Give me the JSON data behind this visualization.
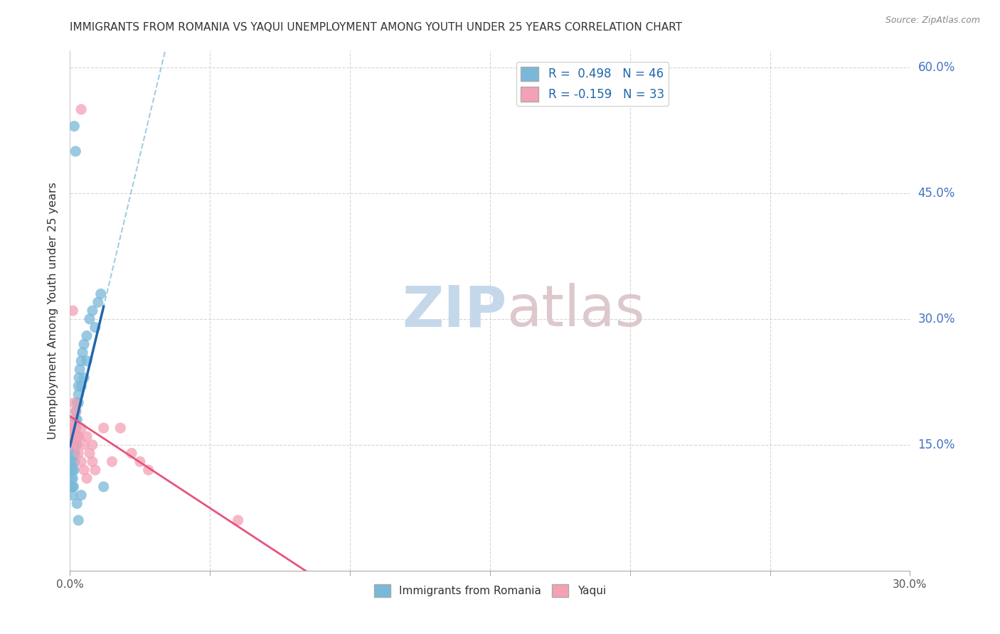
{
  "title": "IMMIGRANTS FROM ROMANIA VS YAQUI UNEMPLOYMENT AMONG YOUTH UNDER 25 YEARS CORRELATION CHART",
  "source": "Source: ZipAtlas.com",
  "ylabel": "Unemployment Among Youth under 25 years",
  "xlim": [
    0.0,
    0.3
  ],
  "ylim": [
    0.0,
    0.62
  ],
  "legend_romania": "R =  0.498   N = 46",
  "legend_yaqui": "R = -0.159   N = 33",
  "legend_label_romania": "Immigrants from Romania",
  "legend_label_yaqui": "Yaqui",
  "color_romania": "#7ab8d9",
  "color_yaqui": "#f4a0b5",
  "color_romania_line": "#2166ac",
  "color_yaqui_line": "#e8537a",
  "color_dashed": "#7ab8d9",
  "romania_x": [
    0.0003,
    0.0005,
    0.0005,
    0.0007,
    0.0008,
    0.0009,
    0.001,
    0.001,
    0.0012,
    0.0013,
    0.0013,
    0.0015,
    0.0015,
    0.0016,
    0.0017,
    0.0018,
    0.002,
    0.002,
    0.002,
    0.0022,
    0.0023,
    0.0025,
    0.0025,
    0.003,
    0.003,
    0.003,
    0.0032,
    0.0035,
    0.004,
    0.004,
    0.0045,
    0.005,
    0.005,
    0.006,
    0.006,
    0.007,
    0.008,
    0.009,
    0.01,
    0.011,
    0.012,
    0.0015,
    0.002,
    0.0025,
    0.003,
    0.004
  ],
  "romania_y": [
    0.1,
    0.12,
    0.11,
    0.13,
    0.09,
    0.1,
    0.11,
    0.12,
    0.13,
    0.14,
    0.1,
    0.15,
    0.12,
    0.16,
    0.13,
    0.14,
    0.17,
    0.16,
    0.18,
    0.19,
    0.15,
    0.2,
    0.18,
    0.22,
    0.2,
    0.21,
    0.23,
    0.24,
    0.25,
    0.22,
    0.26,
    0.27,
    0.23,
    0.28,
    0.25,
    0.3,
    0.31,
    0.29,
    0.32,
    0.33,
    0.1,
    0.53,
    0.5,
    0.08,
    0.06,
    0.09
  ],
  "yaqui_x": [
    0.0002,
    0.0003,
    0.0005,
    0.0007,
    0.001,
    0.001,
    0.0013,
    0.0015,
    0.002,
    0.002,
    0.0025,
    0.003,
    0.003,
    0.004,
    0.004,
    0.005,
    0.006,
    0.007,
    0.008,
    0.009,
    0.012,
    0.015,
    0.018,
    0.022,
    0.025,
    0.028,
    0.06,
    0.002,
    0.003,
    0.004,
    0.005,
    0.006,
    0.008
  ],
  "yaqui_y": [
    0.17,
    0.16,
    0.15,
    0.17,
    0.31,
    0.18,
    0.16,
    0.2,
    0.17,
    0.19,
    0.15,
    0.16,
    0.14,
    0.17,
    0.13,
    0.15,
    0.16,
    0.14,
    0.15,
    0.12,
    0.17,
    0.13,
    0.17,
    0.14,
    0.13,
    0.12,
    0.06,
    0.16,
    0.16,
    0.55,
    0.12,
    0.11,
    0.13
  ],
  "background_color": "#ffffff",
  "grid_color": "#cccccc"
}
